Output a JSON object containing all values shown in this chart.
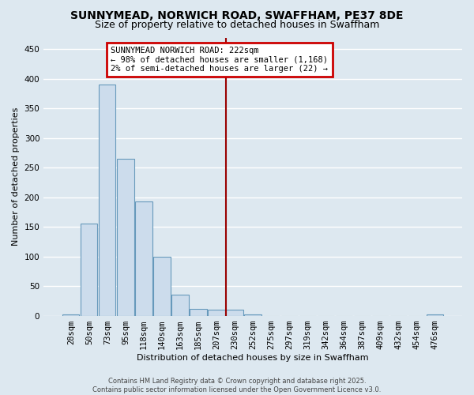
{
  "title": "SUNNYMEAD, NORWICH ROAD, SWAFFHAM, PE37 8DE",
  "subtitle": "Size of property relative to detached houses in Swaffham",
  "xlabel": "Distribution of detached houses by size in Swaffham",
  "ylabel": "Number of detached properties",
  "categories": [
    "28sqm",
    "50sqm",
    "73sqm",
    "95sqm",
    "118sqm",
    "140sqm",
    "163sqm",
    "185sqm",
    "207sqm",
    "230sqm",
    "252sqm",
    "275sqm",
    "297sqm",
    "319sqm",
    "342sqm",
    "364sqm",
    "387sqm",
    "409sqm",
    "432sqm",
    "454sqm",
    "476sqm"
  ],
  "values": [
    2,
    155,
    390,
    265,
    193,
    100,
    35,
    12,
    10,
    10,
    2,
    0,
    0,
    0,
    0,
    0,
    0,
    0,
    0,
    0,
    2
  ],
  "bar_color": "#ccdcec",
  "bar_edge_color": "#6699bb",
  "vline_color": "#990000",
  "vline_x_index": 8.5,
  "annotation_box_text": "SUNNYMEAD NORWICH ROAD: 222sqm\n← 98% of detached houses are smaller (1,168)\n2% of semi-detached houses are larger (22) →",
  "annotation_box_color": "white",
  "annotation_box_edge_color": "#cc0000",
  "background_color": "#dde8f0",
  "grid_color": "white",
  "title_fontsize": 10,
  "subtitle_fontsize": 9,
  "xlabel_fontsize": 8,
  "ylabel_fontsize": 8,
  "tick_fontsize": 7.5,
  "footer_text": "Contains HM Land Registry data © Crown copyright and database right 2025.\nContains public sector information licensed under the Open Government Licence v3.0.",
  "ylim": [
    0,
    470
  ],
  "yticks": [
    0,
    50,
    100,
    150,
    200,
    250,
    300,
    350,
    400,
    450
  ]
}
